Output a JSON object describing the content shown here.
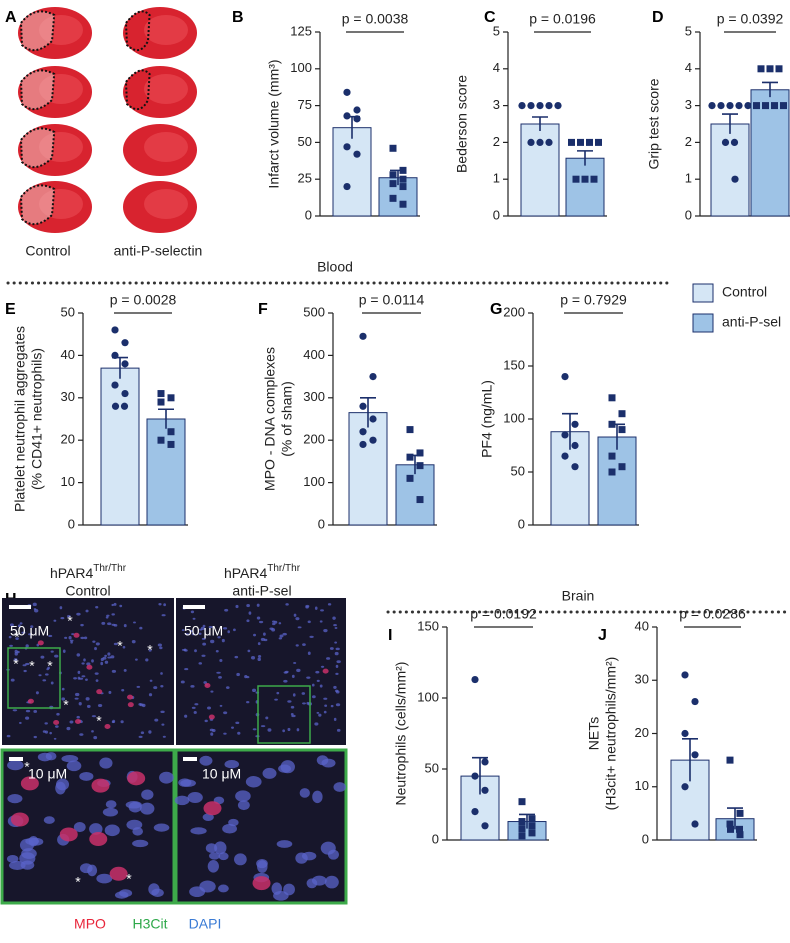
{
  "panel_a": {
    "letter": "A",
    "labels": [
      "Control",
      "anti-P-selectin"
    ]
  },
  "sections": {
    "blood": "Blood",
    "brain": "Brain"
  },
  "legend": [
    {
      "name": "Control",
      "color": "#d5e6f5"
    },
    {
      "name": "anti-P-sel",
      "color": "#9ec3e6"
    }
  ],
  "panel_h": {
    "letter": "H",
    "groups": [
      {
        "gene": "hPAR4",
        "superscript": "Thr/Thr",
        "label": "Control"
      },
      {
        "gene": "hPAR4",
        "superscript": "Thr/Thr",
        "label": "anti-P-sel"
      }
    ],
    "scale_bars": [
      "50 μM",
      "10 μM"
    ],
    "asterisk": "*",
    "channels": [
      {
        "name": "MPO",
        "color": "#e8253a"
      },
      {
        "name": "H3Cit",
        "color": "#2ea84a"
      },
      {
        "name": "DAPI",
        "color": "#3a7bd5"
      }
    ]
  },
  "chart_data": [
    {
      "type": "bar",
      "panel": "B",
      "ylabel": [
        "Infarct volume (mm³)"
      ],
      "annotation": "p = 0.0038",
      "ylim": [
        0,
        125
      ],
      "yticks": [
        0,
        25,
        50,
        75,
        100,
        125
      ],
      "series": [
        {
          "color": "#d5e6f5",
          "marker": "circle",
          "values": [
            60
          ],
          "errors": [
            7.5
          ],
          "points": [
            84,
            72,
            68,
            66,
            47,
            42,
            20
          ]
        },
        {
          "color": "#9ec3e6",
          "marker": "square",
          "values": [
            26
          ],
          "errors": [
            5
          ],
          "points": [
            46,
            31,
            28,
            25,
            22,
            20,
            12,
            8
          ]
        }
      ]
    },
    {
      "type": "bar",
      "panel": "C",
      "ylabel": [
        "Bederson score"
      ],
      "annotation": "p = 0.0196",
      "ylim": [
        0,
        5
      ],
      "yticks": [
        0,
        1,
        2,
        3,
        4,
        5
      ],
      "series": [
        {
          "color": "#d5e6f5",
          "marker": "circle",
          "values": [
            2.5
          ],
          "errors": [
            0.19
          ],
          "points": [
            3,
            3,
            3,
            3,
            3,
            2,
            2,
            2
          ]
        },
        {
          "color": "#9ec3e6",
          "marker": "square",
          "values": [
            1.57
          ],
          "errors": [
            0.2
          ],
          "points": [
            2,
            2,
            2,
            2,
            1,
            1,
            1
          ]
        }
      ]
    },
    {
      "type": "bar",
      "panel": "D",
      "ylabel": [
        "Grip test score"
      ],
      "annotation": "p = 0.0392",
      "ylim": [
        0,
        5
      ],
      "yticks": [
        0,
        1,
        2,
        3,
        4,
        5
      ],
      "series": [
        {
          "color": "#d5e6f5",
          "marker": "circle",
          "values": [
            2.5
          ],
          "errors": [
            0.27
          ],
          "points": [
            3,
            3,
            3,
            3,
            3,
            2,
            2,
            1
          ]
        },
        {
          "color": "#9ec3e6",
          "marker": "square",
          "values": [
            3.43
          ],
          "errors": [
            0.2
          ],
          "points": [
            4,
            4,
            4,
            3,
            3,
            3,
            3
          ]
        }
      ]
    },
    {
      "type": "bar",
      "panel": "E",
      "ylabel": [
        "Platelet neutrophil aggregates",
        "(% CD41+ neutrophils)"
      ],
      "annotation": "p = 0.0028",
      "ylim": [
        0,
        50
      ],
      "yticks": [
        0,
        10,
        20,
        30,
        40,
        50
      ],
      "series": [
        {
          "color": "#d5e6f5",
          "marker": "circle",
          "values": [
            37
          ],
          "errors": [
            2.5
          ],
          "points": [
            46,
            43,
            40,
            38,
            33,
            31,
            28,
            28
          ]
        },
        {
          "color": "#9ec3e6",
          "marker": "square",
          "values": [
            25
          ],
          "errors": [
            2.3
          ],
          "points": [
            31,
            30,
            29,
            22,
            20,
            19
          ]
        }
      ]
    },
    {
      "type": "bar",
      "panel": "F",
      "ylabel": [
        "MPO - DNA complexes",
        "(% of sham)"
      ],
      "annotation": "p = 0.0114",
      "ylim": [
        0,
        500
      ],
      "yticks": [
        0,
        100,
        200,
        300,
        400,
        500
      ],
      "series": [
        {
          "color": "#d5e6f5",
          "marker": "circle",
          "values": [
            265
          ],
          "errors": [
            35
          ],
          "points": [
            445,
            350,
            280,
            250,
            220,
            200,
            190
          ]
        },
        {
          "color": "#9ec3e6",
          "marker": "square",
          "values": [
            142
          ],
          "errors": [
            22
          ],
          "points": [
            225,
            170,
            160,
            140,
            110,
            60
          ]
        }
      ]
    },
    {
      "type": "bar",
      "panel": "G",
      "ylabel": [
        "PF4 (ng/mL)"
      ],
      "annotation": "p = 0.7929",
      "ylim": [
        0,
        200
      ],
      "yticks": [
        0,
        50,
        100,
        150,
        200
      ],
      "series": [
        {
          "color": "#d5e6f5",
          "marker": "circle",
          "values": [
            88
          ],
          "errors": [
            17
          ],
          "points": [
            140,
            95,
            85,
            75,
            65,
            55
          ]
        },
        {
          "color": "#9ec3e6",
          "marker": "square",
          "values": [
            83
          ],
          "errors": [
            12
          ],
          "points": [
            120,
            105,
            95,
            90,
            65,
            55,
            50
          ]
        }
      ]
    },
    {
      "type": "bar",
      "panel": "I",
      "ylabel": [
        "Neutrophils (cells/mm²)"
      ],
      "annotation": "p = 0.0192",
      "ylim": [
        0,
        150
      ],
      "yticks": [
        0,
        50,
        100,
        150
      ],
      "series": [
        {
          "color": "#d5e6f5",
          "marker": "circle",
          "values": [
            45
          ],
          "errors": [
            13
          ],
          "points": [
            113,
            55,
            45,
            35,
            20,
            10
          ]
        },
        {
          "color": "#9ec3e6",
          "marker": "square",
          "values": [
            13
          ],
          "errors": [
            5
          ],
          "points": [
            27,
            15,
            13,
            10,
            8,
            5,
            3
          ]
        }
      ]
    },
    {
      "type": "bar",
      "panel": "J",
      "ylabel": [
        "NETs",
        "(H3cit+ neutrophils/mm²)"
      ],
      "annotation": "p = 0.0286",
      "ylim": [
        0,
        40
      ],
      "yticks": [
        0,
        10,
        20,
        30,
        40
      ],
      "series": [
        {
          "color": "#d5e6f5",
          "marker": "circle",
          "values": [
            15
          ],
          "errors": [
            4
          ],
          "points": [
            31,
            26,
            20,
            16,
            10,
            3
          ]
        },
        {
          "color": "#9ec3e6",
          "marker": "square",
          "values": [
            4
          ],
          "errors": [
            2
          ],
          "points": [
            15,
            5,
            3,
            2,
            2,
            1
          ]
        }
      ]
    }
  ]
}
